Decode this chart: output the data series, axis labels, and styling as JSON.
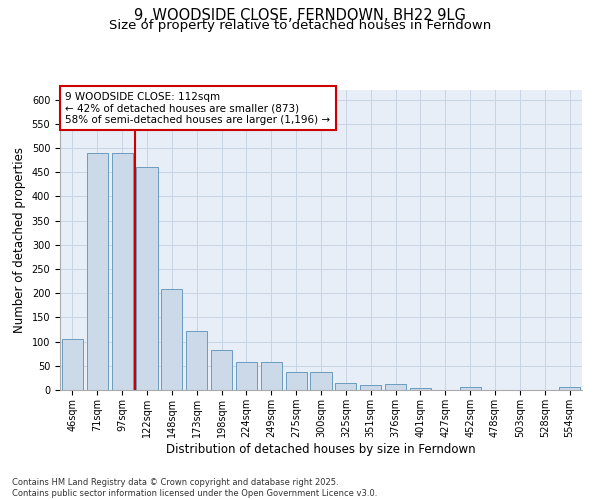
{
  "title_line1": "9, WOODSIDE CLOSE, FERNDOWN, BH22 9LG",
  "title_line2": "Size of property relative to detached houses in Ferndown",
  "xlabel": "Distribution of detached houses by size in Ferndown",
  "ylabel": "Number of detached properties",
  "categories": [
    "46sqm",
    "71sqm",
    "97sqm",
    "122sqm",
    "148sqm",
    "173sqm",
    "198sqm",
    "224sqm",
    "249sqm",
    "275sqm",
    "300sqm",
    "325sqm",
    "351sqm",
    "376sqm",
    "401sqm",
    "427sqm",
    "452sqm",
    "478sqm",
    "503sqm",
    "528sqm",
    "554sqm"
  ],
  "values": [
    105,
    490,
    490,
    460,
    208,
    122,
    82,
    58,
    58,
    38,
    38,
    14,
    10,
    12,
    4,
    0,
    7,
    0,
    0,
    0,
    7
  ],
  "bar_color": "#ccd9e8",
  "bar_edge_color": "#6a9cbf",
  "vline_x": 2.5,
  "vline_color": "#cc0000",
  "annotation_text": "9 WOODSIDE CLOSE: 112sqm\n← 42% of detached houses are smaller (873)\n58% of semi-detached houses are larger (1,196) →",
  "annotation_box_color": "#ffffff",
  "annotation_box_edge": "#cc0000",
  "ylim": [
    0,
    620
  ],
  "yticks": [
    0,
    50,
    100,
    150,
    200,
    250,
    300,
    350,
    400,
    450,
    500,
    550,
    600
  ],
  "grid_color": "#c8d4e4",
  "bg_color": "#e8eef8",
  "footnote": "Contains HM Land Registry data © Crown copyright and database right 2025.\nContains public sector information licensed under the Open Government Licence v3.0.",
  "title_fontsize": 10.5,
  "subtitle_fontsize": 9.5,
  "axis_label_fontsize": 8.5,
  "tick_fontsize": 7,
  "annotation_fontsize": 7.5,
  "footnote_fontsize": 6
}
